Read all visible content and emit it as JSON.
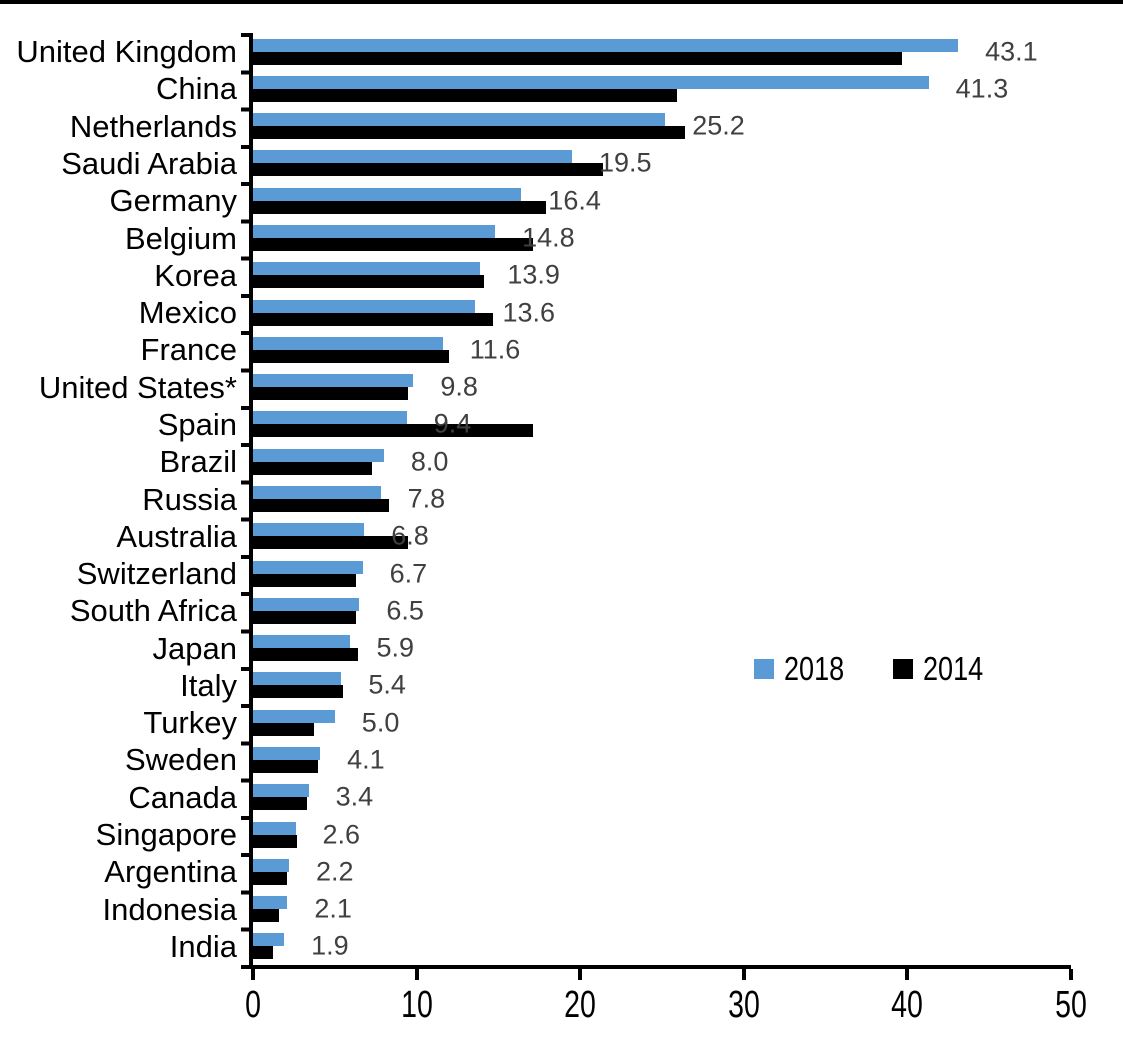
{
  "chart_data": {
    "type": "bar",
    "orientation": "horizontal",
    "title": "",
    "xlabel": "",
    "ylabel": "",
    "xlim": [
      0,
      50
    ],
    "x_ticks": [
      0,
      10,
      20,
      30,
      40,
      50
    ],
    "grid": false,
    "categories": [
      "United Kingdom",
      "China",
      "Netherlands",
      "Saudi Arabia",
      "Germany",
      "Belgium",
      "Korea",
      "Mexico",
      "France",
      "United States*",
      "Spain",
      "Brazil",
      "Russia",
      "Australia",
      "Switzerland",
      "South Africa",
      "Japan",
      "Italy",
      "Turkey",
      "Sweden",
      "Canada",
      "Singapore",
      "Argentina",
      "Indonesia",
      "India"
    ],
    "series": [
      {
        "name": "2018",
        "color": "#5B9BD5",
        "values": [
          43.1,
          41.3,
          25.2,
          19.5,
          16.4,
          14.8,
          13.9,
          13.6,
          11.6,
          9.8,
          9.4,
          8.0,
          7.8,
          6.8,
          6.7,
          6.5,
          5.9,
          5.4,
          5.0,
          4.1,
          3.4,
          2.6,
          2.2,
          2.1,
          1.9
        ]
      },
      {
        "name": "2014",
        "color": "#000000",
        "values": [
          39.7,
          25.9,
          26.4,
          21.4,
          17.9,
          17.1,
          14.1,
          14.7,
          12.0,
          9.5,
          17.1,
          7.3,
          8.3,
          9.5,
          6.3,
          6.3,
          6.4,
          5.5,
          3.7,
          4.0,
          3.3,
          2.7,
          2.1,
          1.6,
          1.2
        ]
      }
    ],
    "data_labels": {
      "series": "2018",
      "color": "#404040",
      "values": [
        "43.1",
        "41.3",
        "25.2",
        "19.5",
        "16.4",
        "14.8",
        "13.9",
        "13.6",
        "11.6",
        "9.8",
        "9.4",
        "8.0",
        "7.8",
        "6.8",
        "6.7",
        "6.5",
        "5.9",
        "5.4",
        "5.0",
        "4.1",
        "3.4",
        "2.6",
        "2.2",
        "2.1",
        "1.9"
      ]
    },
    "legend": {
      "position": "inside-right",
      "entries": [
        {
          "label": "2018",
          "color": "#5B9BD5"
        },
        {
          "label": "2014",
          "color": "#000000"
        }
      ]
    }
  }
}
